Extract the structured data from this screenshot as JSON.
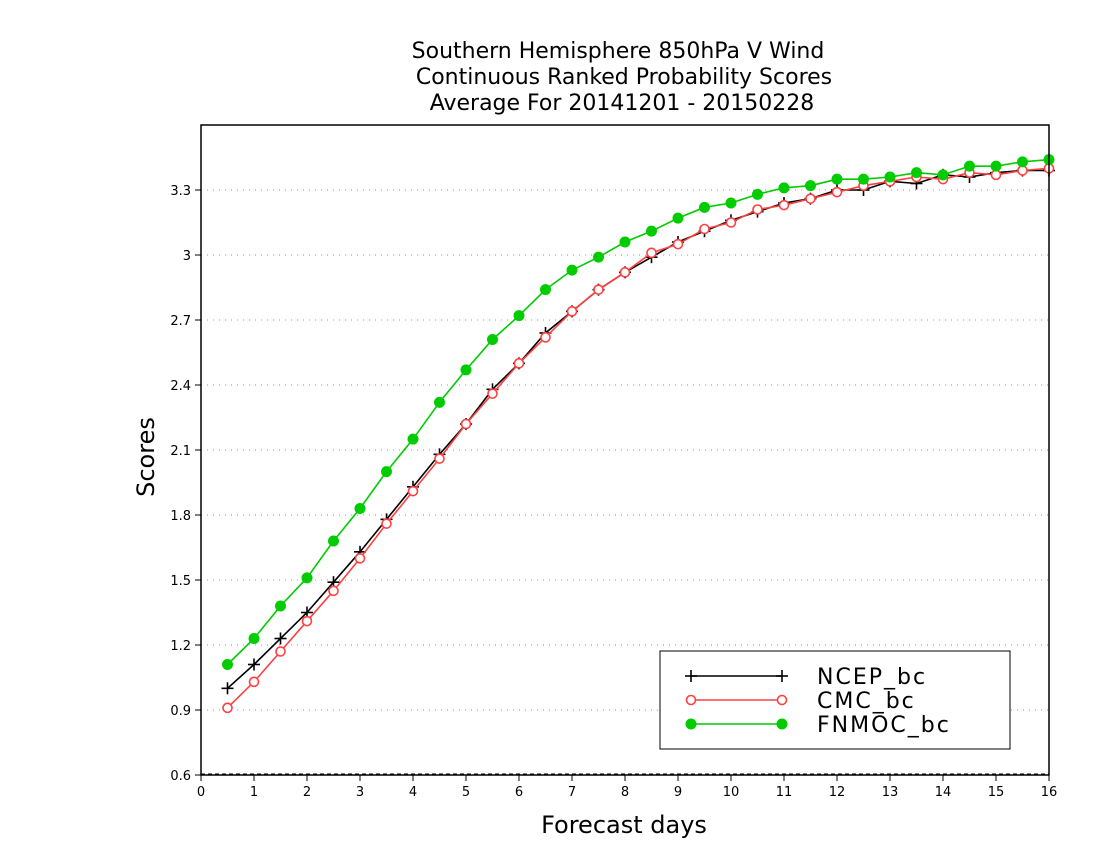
{
  "chart_data": {
    "type": "line",
    "title_lines": [
      "Southern Hemisphere 850hPa V Wind",
      "Continuous Ranked Probability Scores",
      "Average For 20141201 - 20150228"
    ],
    "xlabel": "Forecast days",
    "ylabel": "Scores",
    "xlim": [
      0,
      16
    ],
    "ylim": [
      0.6,
      3.6
    ],
    "xticks": [
      "0",
      "1",
      "2",
      "3",
      "4",
      "5",
      "6",
      "7",
      "8",
      "9",
      "10",
      "11",
      "12",
      "13",
      "14",
      "15",
      "16"
    ],
    "yticks": [
      "0.6",
      "0.9",
      "1.2",
      "1.5",
      "1.8",
      "2.1",
      "2.4",
      "2.7",
      "3",
      "3.3"
    ],
    "grid": "horizontal dotted",
    "legend_position": "bottom-right",
    "x": [
      0.5,
      1,
      1.5,
      2,
      2.5,
      3,
      3.5,
      4,
      4.5,
      5,
      5.5,
      6,
      6.5,
      7,
      7.5,
      8,
      8.5,
      9,
      9.5,
      10,
      10.5,
      11,
      11.5,
      12,
      12.5,
      13,
      13.5,
      14,
      14.5,
      15,
      15.5,
      16
    ],
    "series": [
      {
        "name": "NCEP_bc",
        "color": "#000000",
        "marker": "plus",
        "values": [
          1.0,
          1.11,
          1.23,
          1.35,
          1.49,
          1.63,
          1.78,
          1.93,
          2.08,
          2.22,
          2.38,
          2.5,
          2.64,
          2.74,
          2.84,
          2.92,
          2.99,
          3.06,
          3.11,
          3.16,
          3.2,
          3.24,
          3.26,
          3.3,
          3.3,
          3.34,
          3.33,
          3.37,
          3.36,
          3.38,
          3.39,
          3.39
        ]
      },
      {
        "name": "CMC_bc",
        "color": "#ff4040",
        "marker": "open-circle",
        "values": [
          0.91,
          1.03,
          1.17,
          1.31,
          1.45,
          1.6,
          1.76,
          1.91,
          2.06,
          2.22,
          2.36,
          2.5,
          2.62,
          2.74,
          2.84,
          2.92,
          3.01,
          3.05,
          3.12,
          3.15,
          3.21,
          3.23,
          3.26,
          3.29,
          3.32,
          3.34,
          3.36,
          3.35,
          3.38,
          3.37,
          3.39,
          3.4
        ]
      },
      {
        "name": "FNMOC_bc",
        "color": "#00cc00",
        "marker": "filled-circle",
        "values": [
          1.11,
          1.23,
          1.38,
          1.51,
          1.68,
          1.83,
          2.0,
          2.15,
          2.32,
          2.47,
          2.61,
          2.72,
          2.84,
          2.93,
          2.99,
          3.06,
          3.11,
          3.17,
          3.22,
          3.24,
          3.28,
          3.31,
          3.32,
          3.35,
          3.35,
          3.36,
          3.38,
          3.37,
          3.41,
          3.41,
          3.43,
          3.44
        ]
      }
    ]
  }
}
